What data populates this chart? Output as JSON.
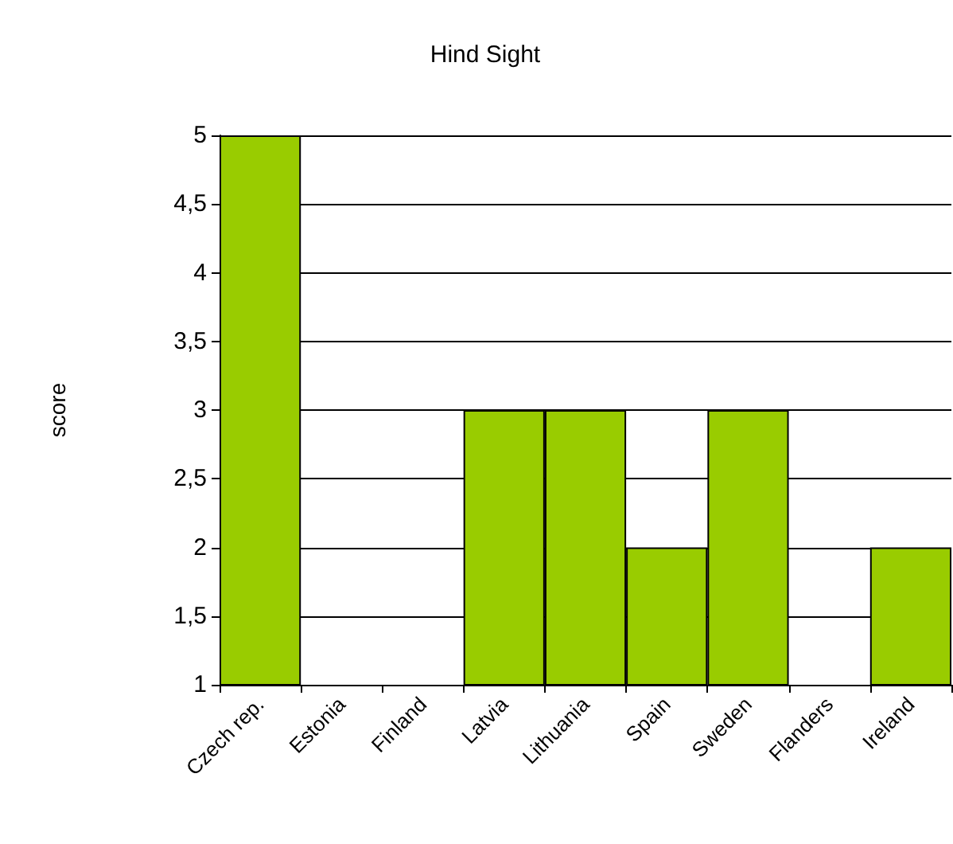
{
  "chart_data": {
    "type": "bar",
    "title": "Hind Sight",
    "ylabel": "score",
    "categories": [
      "Czech rep.",
      "Estonia",
      "Finland",
      "Latvia",
      "Lithuania",
      "Spain",
      "Sweden",
      "Flanders",
      "Ireland"
    ],
    "values": [
      5,
      null,
      null,
      3,
      3,
      2,
      3,
      null,
      2
    ],
    "color": "#99cc00",
    "ylim": [
      1,
      5
    ],
    "yticks": [
      1,
      {
        "value": 1.5,
        "label": "1,5"
      },
      2,
      {
        "value": 2.5,
        "label": "2,5"
      },
      3,
      {
        "value": 3.5,
        "label": "3,5"
      },
      4,
      {
        "value": 4.5,
        "label": "4,5"
      },
      5
    ],
    "grid": "y"
  }
}
